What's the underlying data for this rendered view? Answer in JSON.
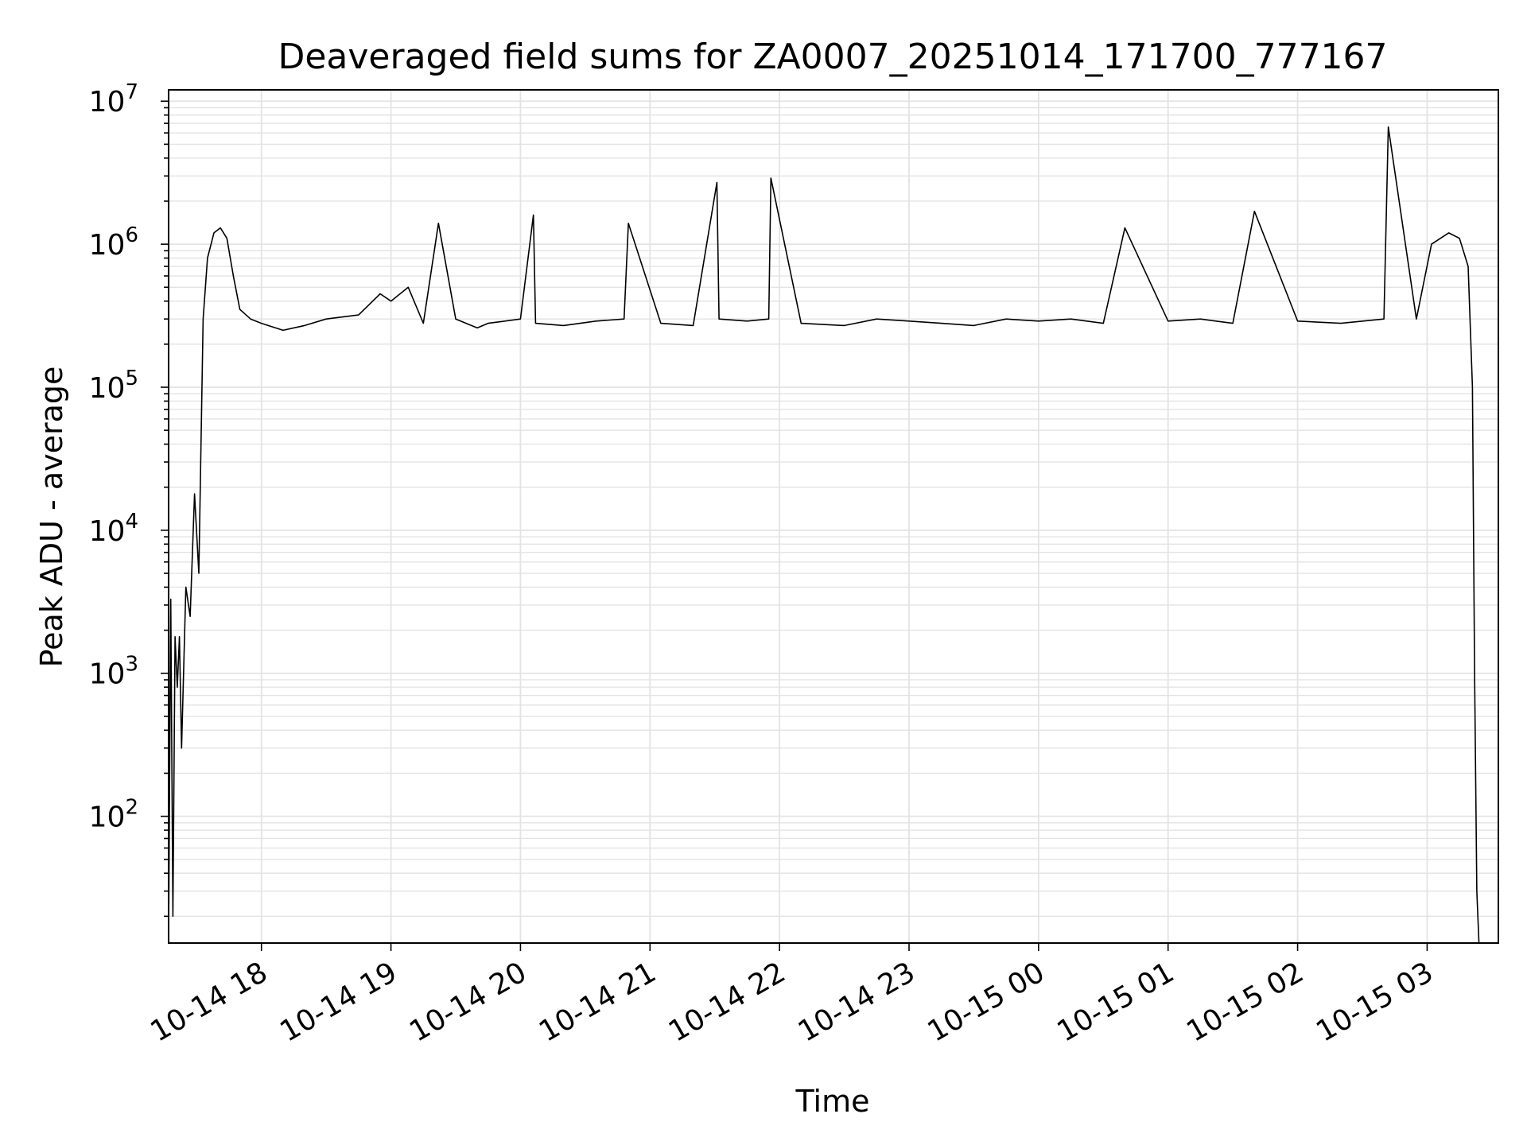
{
  "chart_data": {
    "type": "line",
    "title": "Deaveraged field sums for ZA0007_20251014_171700_777167",
    "xlabel": "Time",
    "ylabel": "Peak ADU - average",
    "yscale": "log",
    "ylim": [
      13,
      12000000
    ],
    "xlim": [
      "2025-10-14 17:17",
      "2025-10-15 03:33"
    ],
    "grid": true,
    "line_color": "#000000",
    "x_ticks": [
      "10-14 18",
      "10-14 19",
      "10-14 20",
      "10-14 21",
      "10-14 22",
      "10-14 23",
      "10-15 00",
      "10-15 01",
      "10-15 02",
      "10-15 03"
    ],
    "y_ticks": [
      {
        "base": "10",
        "exp": "2",
        "value": 100
      },
      {
        "base": "10",
        "exp": "3",
        "value": 1000
      },
      {
        "base": "10",
        "exp": "4",
        "value": 10000
      },
      {
        "base": "10",
        "exp": "5",
        "value": 100000
      },
      {
        "base": "10",
        "exp": "6",
        "value": 1000000
      },
      {
        "base": "10",
        "exp": "7",
        "value": 10000000
      }
    ],
    "series": [
      {
        "x": [
          "2025-10-14 17:17",
          "2025-10-14 17:18",
          "2025-10-14 17:19",
          "2025-10-14 17:20",
          "2025-10-14 17:21",
          "2025-10-14 17:22",
          "2025-10-14 17:23",
          "2025-10-14 17:25",
          "2025-10-14 17:27",
          "2025-10-14 17:29",
          "2025-10-14 17:31",
          "2025-10-14 17:33",
          "2025-10-14 17:35",
          "2025-10-14 17:38",
          "2025-10-14 17:41",
          "2025-10-14 17:44",
          "2025-10-14 17:47",
          "2025-10-14 17:50",
          "2025-10-14 17:55",
          "2025-10-14 18:00",
          "2025-10-14 18:10",
          "2025-10-14 18:20",
          "2025-10-14 18:30",
          "2025-10-14 18:45",
          "2025-10-14 18:55",
          "2025-10-14 19:00",
          "2025-10-14 19:08",
          "2025-10-14 19:15",
          "2025-10-14 19:22",
          "2025-10-14 19:30",
          "2025-10-14 19:40",
          "2025-10-14 19:45",
          "2025-10-14 20:00",
          "2025-10-14 20:06",
          "2025-10-14 20:07",
          "2025-10-14 20:20",
          "2025-10-14 20:35",
          "2025-10-14 20:48",
          "2025-10-14 20:50",
          "2025-10-14 21:05",
          "2025-10-14 21:20",
          "2025-10-14 21:31",
          "2025-10-14 21:32",
          "2025-10-14 21:45",
          "2025-10-14 21:55",
          "2025-10-14 21:56",
          "2025-10-14 22:10",
          "2025-10-14 22:30",
          "2025-10-14 22:45",
          "2025-10-14 23:00",
          "2025-10-14 23:15",
          "2025-10-14 23:30",
          "2025-10-14 23:45",
          "2025-10-15 00:00",
          "2025-10-15 00:15",
          "2025-10-15 00:30",
          "2025-10-15 00:40",
          "2025-10-15 01:00",
          "2025-10-15 01:15",
          "2025-10-15 01:30",
          "2025-10-15 01:40",
          "2025-10-15 02:00",
          "2025-10-15 02:20",
          "2025-10-15 02:40",
          "2025-10-15 02:42",
          "2025-10-15 02:55",
          "2025-10-15 03:02",
          "2025-10-15 03:10",
          "2025-10-15 03:15",
          "2025-10-15 03:19",
          "2025-10-15 03:21",
          "2025-10-15 03:22",
          "2025-10-15 03:23",
          "2025-10-15 03:24"
        ],
        "y": [
          14,
          3300,
          20,
          1800,
          800,
          1800,
          300,
          4000,
          2500,
          18000,
          5000,
          300000,
          800000,
          1200000,
          1300000,
          1100000,
          600000,
          350000,
          300000,
          280000,
          250000,
          270000,
          300000,
          320000,
          450000,
          400000,
          500000,
          280000,
          1400000,
          300000,
          260000,
          280000,
          300000,
          1600000,
          280000,
          270000,
          290000,
          300000,
          1400000,
          280000,
          270000,
          2700000,
          300000,
          290000,
          300000,
          2900000,
          280000,
          270000,
          300000,
          290000,
          280000,
          270000,
          300000,
          290000,
          300000,
          280000,
          1300000,
          290000,
          300000,
          280000,
          1700000,
          290000,
          280000,
          300000,
          6600000,
          300000,
          1000000,
          1200000,
          1100000,
          700000,
          100000,
          1000,
          30,
          13
        ]
      }
    ]
  }
}
